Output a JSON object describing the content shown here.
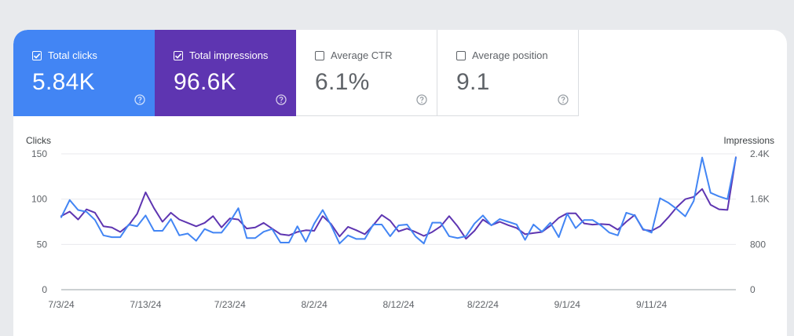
{
  "metrics": [
    {
      "id": "clicks",
      "label": "Total clicks",
      "value": "5.84K",
      "checked": true
    },
    {
      "id": "impressions",
      "label": "Total impressions",
      "value": "96.6K",
      "checked": true
    },
    {
      "id": "ctr",
      "label": "Average CTR",
      "value": "6.1%",
      "checked": false
    },
    {
      "id": "position",
      "label": "Average position",
      "value": "9.1",
      "checked": false
    }
  ],
  "colors": {
    "clicks": "#4285f4",
    "impressions": "#5e35b1",
    "grid": "#e8eaed",
    "axis_text": "#5f6368"
  },
  "icons": {
    "help": "help-circle-icon",
    "check": "checkmark-icon"
  },
  "chart_data": {
    "type": "line",
    "xlabel": "",
    "ylabel_left": "Clicks",
    "ylabel_right": "Impressions",
    "ylim_left": [
      0,
      150
    ],
    "ylim_right": [
      0,
      2400
    ],
    "yticks_left": [
      "0",
      "50",
      "100",
      "150"
    ],
    "yticks_right": [
      "0",
      "800",
      "1.6K",
      "2.4K"
    ],
    "x_start": "2024-07-03",
    "x_ticks": [
      "7/3/24",
      "7/13/24",
      "7/23/24",
      "8/2/24",
      "8/12/24",
      "8/22/24",
      "9/1/24",
      "9/11/24"
    ],
    "grid": true,
    "series": [
      {
        "name": "Total clicks",
        "axis": "left",
        "values": [
          80,
          99,
          88,
          86,
          77,
          60,
          58,
          58,
          72,
          70,
          82,
          65,
          65,
          78,
          60,
          62,
          54,
          67,
          63,
          63,
          75,
          90,
          57,
          57,
          64,
          67,
          52,
          52,
          70,
          53,
          73,
          88,
          71,
          51,
          60,
          56,
          56,
          72,
          72,
          59,
          71,
          72,
          59,
          51,
          74,
          74,
          59,
          57,
          59,
          73,
          82,
          71,
          78,
          75,
          72,
          55,
          72,
          64,
          74,
          58,
          84,
          68,
          77,
          77,
          71,
          63,
          60,
          85,
          82,
          67,
          63,
          101,
          96,
          89,
          81,
          98,
          146,
          107,
          103,
          100,
          146
        ]
      },
      {
        "name": "Total impressions",
        "axis": "right",
        "values": [
          1300,
          1380,
          1240,
          1420,
          1360,
          1120,
          1100,
          1020,
          1140,
          1340,
          1720,
          1440,
          1200,
          1360,
          1240,
          1180,
          1120,
          1180,
          1300,
          1100,
          1260,
          1240,
          1080,
          1100,
          1180,
          1080,
          980,
          960,
          1020,
          1050,
          1040,
          1300,
          1160,
          940,
          1110,
          1050,
          980,
          1140,
          1320,
          1220,
          1030,
          1080,
          1020,
          950,
          1020,
          1120,
          1300,
          1120,
          900,
          1040,
          1240,
          1140,
          1200,
          1140,
          1090,
          980,
          1000,
          1020,
          1130,
          1270,
          1350,
          1350,
          1170,
          1150,
          1160,
          1150,
          1060,
          1200,
          1320,
          1060,
          1040,
          1120,
          1280,
          1460,
          1600,
          1640,
          1780,
          1500,
          1420,
          1410,
          2340
        ]
      }
    ]
  }
}
